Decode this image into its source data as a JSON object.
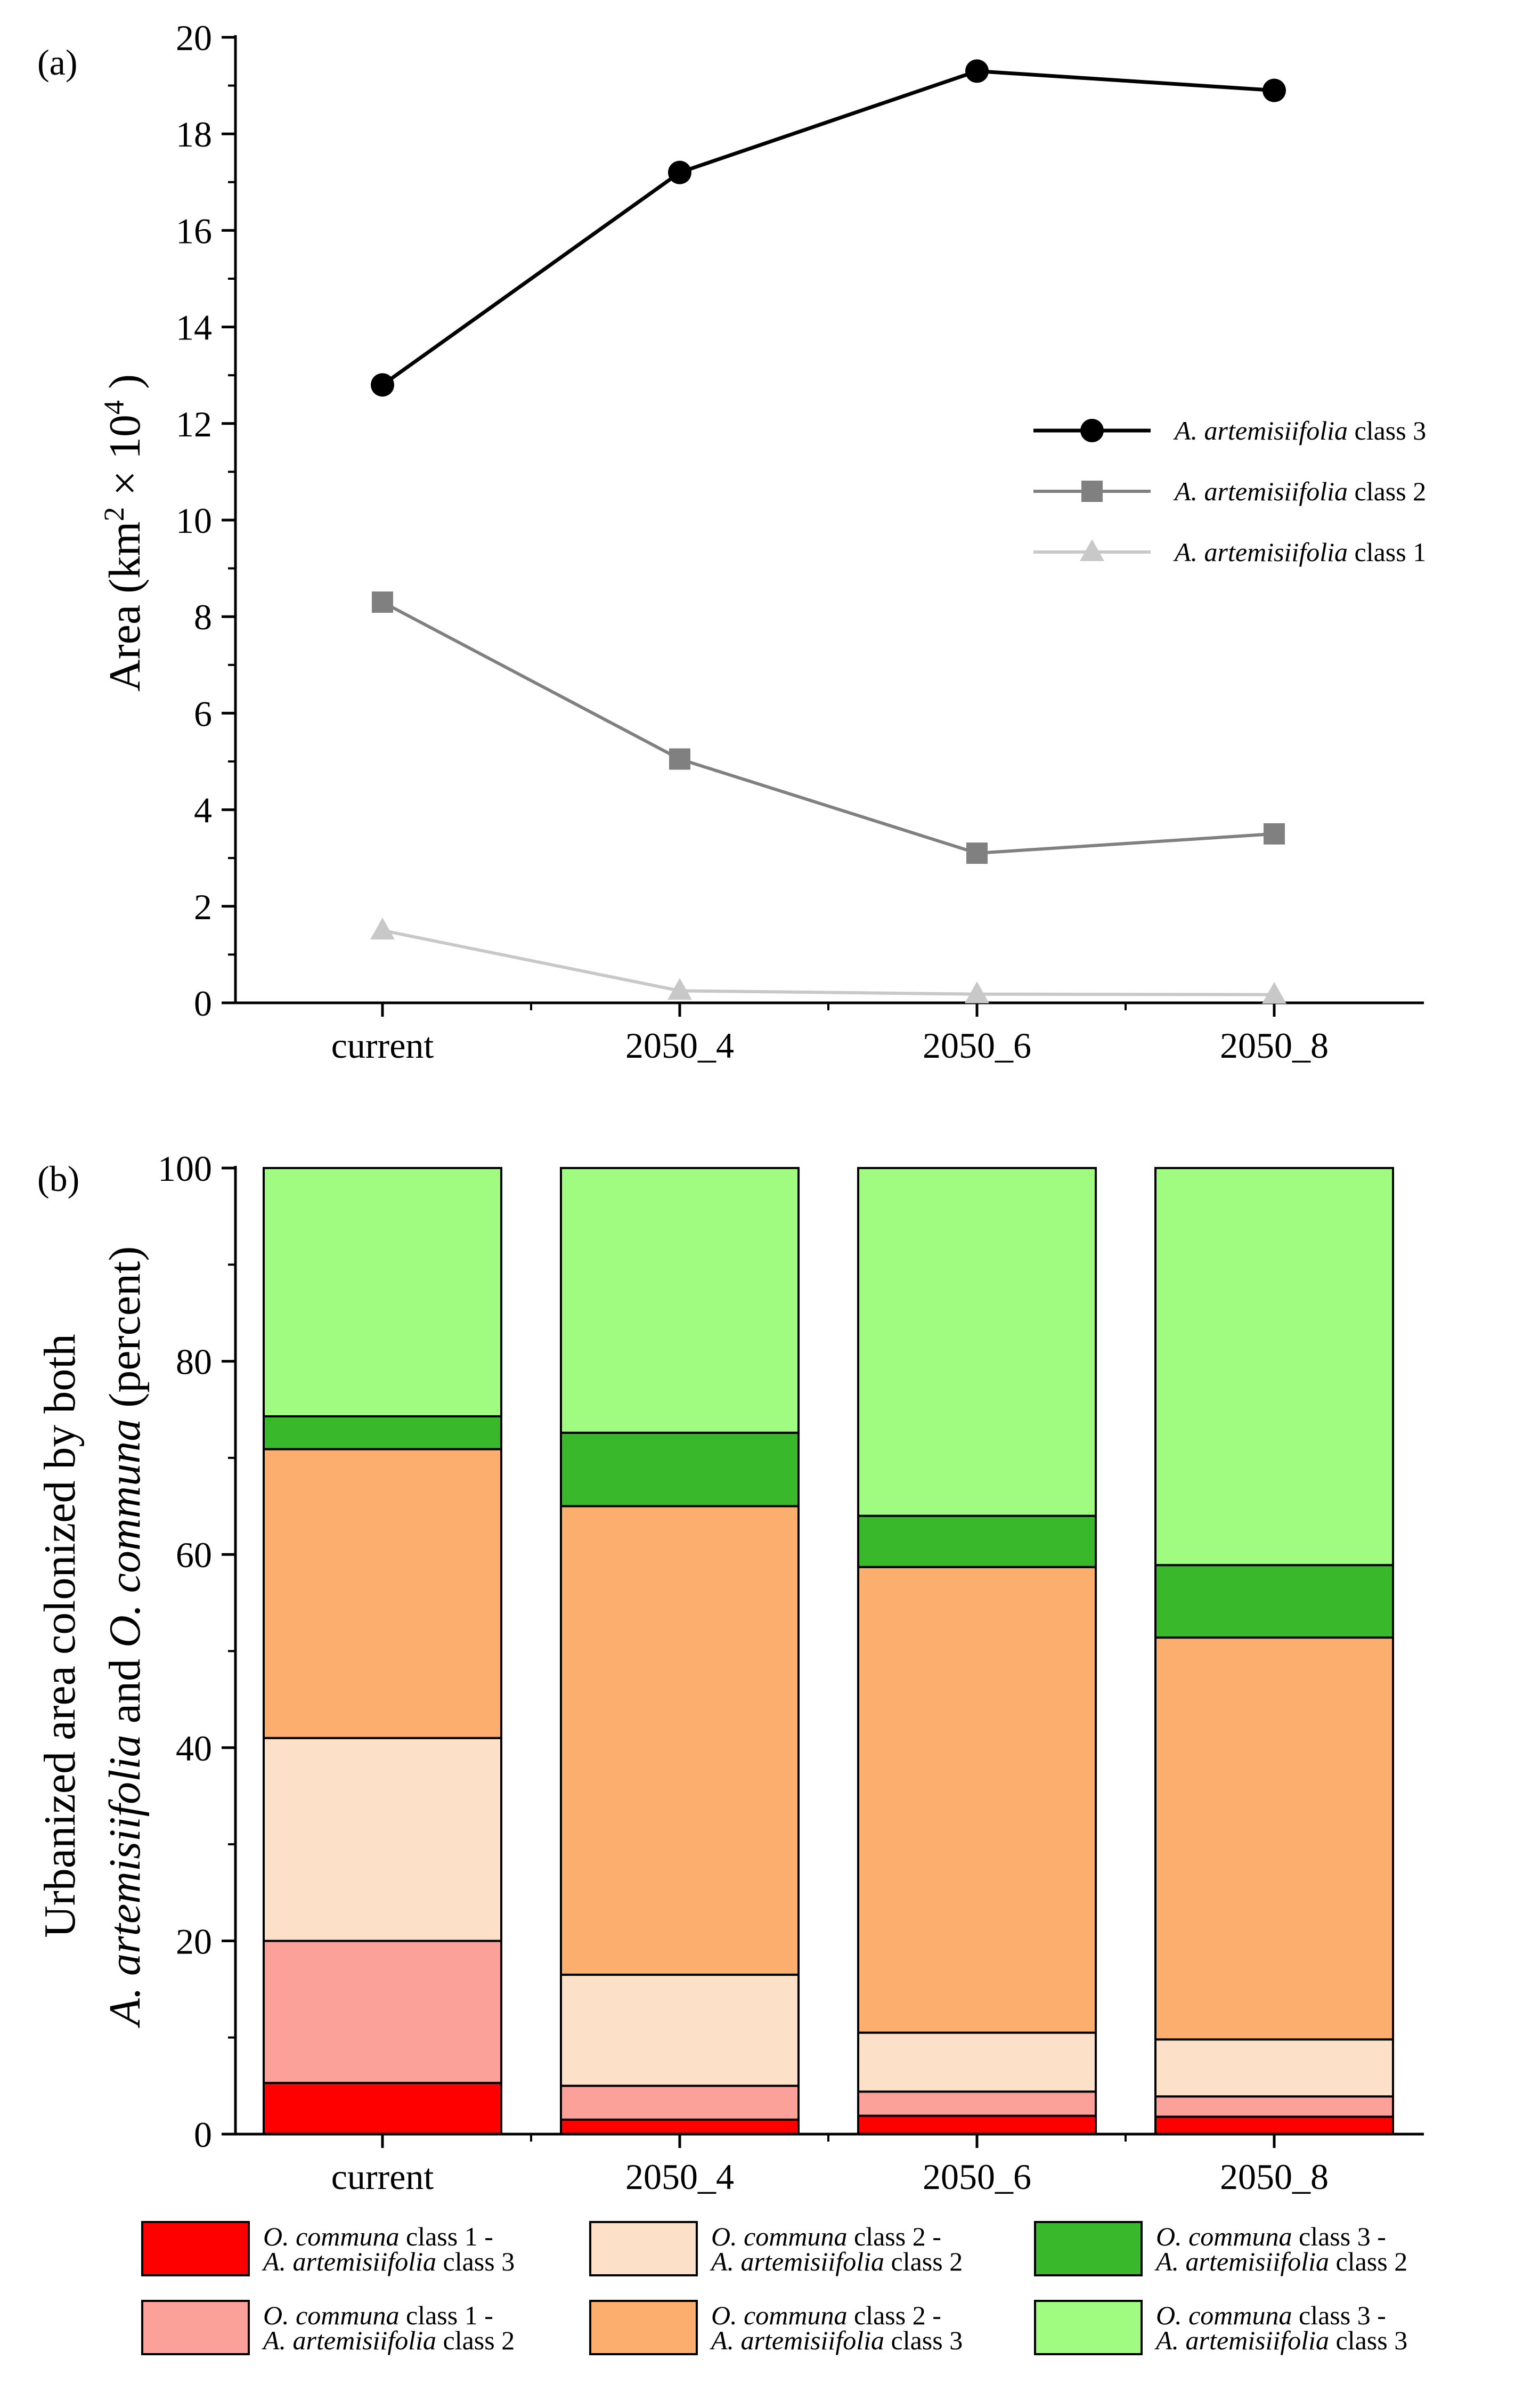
{
  "figure": {
    "panel_a_label": "(a)",
    "panel_b_label": "(b)"
  },
  "chart_data": [
    {
      "type": "line",
      "title": "",
      "xlabel": "",
      "ylabel_main": "Area (km",
      "ylabel_sup1": "2",
      "ylabel_times": " × 10",
      "ylabel_sup2": "4",
      "ylabel_close": " )",
      "categories": [
        "current",
        "2050_4",
        "2050_6",
        "2050_8"
      ],
      "ylim": [
        0,
        20
      ],
      "yticks": [
        "0",
        "2",
        "4",
        "6",
        "8",
        "10",
        "12",
        "14",
        "16",
        "18",
        "20"
      ],
      "legend_position": "right",
      "series": [
        {
          "name_italic": "A. artemisiifolia",
          "name_rest": " class 3",
          "marker": "circle",
          "color": "#000000",
          "values": [
            12.8,
            17.2,
            19.3,
            18.9
          ]
        },
        {
          "name_italic": "A. artemisiifolia",
          "name_rest": " class 2",
          "marker": "square",
          "color": "#808080",
          "values": [
            8.3,
            5.05,
            3.1,
            3.5
          ]
        },
        {
          "name_italic": "A. artemisiifolia",
          "name_rest": " class 1",
          "marker": "triangle",
          "color": "#c8c8c8",
          "values": [
            1.5,
            0.25,
            0.18,
            0.17
          ]
        }
      ]
    },
    {
      "type": "bar",
      "stacked": true,
      "title": "",
      "xlabel": "",
      "ylabel_line1": "Urbanized area colonized by both",
      "ylabel_line2_italic1": "A. artemisiifolia",
      "ylabel_line2_mid": " and ",
      "ylabel_line2_italic2": "O. communa",
      "ylabel_line2_rest": " (percent)",
      "categories": [
        "current",
        "2050_4",
        "2050_6",
        "2050_8"
      ],
      "ylim": [
        0,
        100
      ],
      "yticks": [
        "0",
        "20",
        "40",
        "60",
        "80",
        "100"
      ],
      "legend_position": "bottom",
      "series": [
        {
          "l1_italic": "O. communa",
          "l1_rest": " class 1 -",
          "l2_italic": "A. artemisiifolia",
          "l2_rest": " class 3",
          "color": "#ff0000",
          "values": [
            5.3,
            1.5,
            1.9,
            1.8
          ]
        },
        {
          "l1_italic": "O. communa",
          "l1_rest": " class 1 -",
          "l2_italic": "A. artemisiifolia",
          "l2_rest": " class 2",
          "color": "#fca09a",
          "values": [
            14.7,
            3.5,
            2.5,
            2.1
          ]
        },
        {
          "l1_italic": "O. communa",
          "l1_rest": " class 2 -",
          "l2_italic": "A. artemisiifolia",
          "l2_rest": " class 2",
          "color": "#fde0c8",
          "values": [
            21.0,
            11.5,
            6.1,
            5.9
          ]
        },
        {
          "l1_italic": "O. communa",
          "l1_rest": " class 2 -",
          "l2_italic": "A. artemisiifolia",
          "l2_rest": " class 3",
          "color": "#fcae6e",
          "values": [
            29.9,
            48.5,
            48.2,
            41.6
          ]
        },
        {
          "l1_italic": "O. communa",
          "l1_rest": " class 3 -",
          "l2_italic": "A. artemisiifolia",
          "l2_rest": " class 2",
          "color": "#38b82a",
          "values": [
            3.4,
            7.6,
            5.3,
            7.5
          ]
        },
        {
          "l1_italic": "O. communa",
          "l1_rest": " class 3 -",
          "l2_italic": "A. artemisiifolia",
          "l2_rest": " class 3",
          "color": "#a0fc80",
          "values": [
            25.7,
            27.4,
            36.0,
            41.1
          ]
        }
      ]
    }
  ]
}
